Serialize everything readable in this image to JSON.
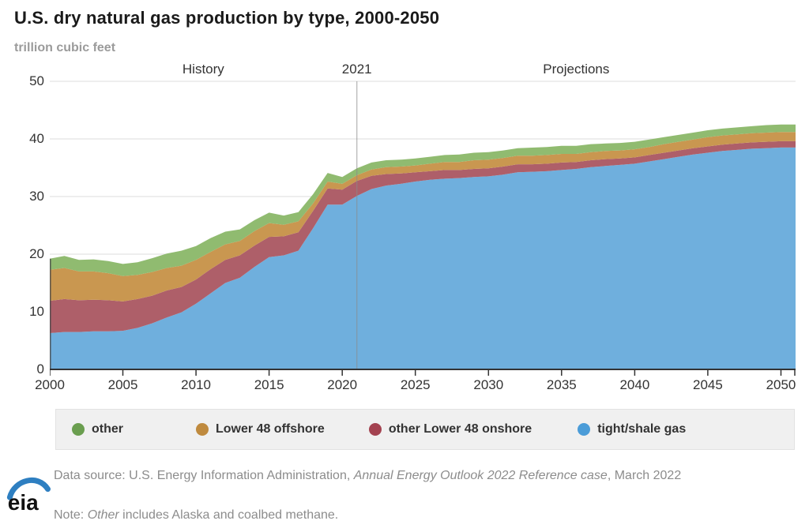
{
  "header": {
    "title": "U.S. dry natural gas production by type, 2000-2050",
    "subtitle": "trillion cubic feet"
  },
  "annotations": {
    "history": "History",
    "divider_year": "2021",
    "projections": "Projections"
  },
  "chart_data": {
    "type": "area",
    "stacked": true,
    "title": "U.S. dry natural gas production by type, 2000-2050",
    "ylabel": "trillion cubic feet",
    "xlim": [
      2000,
      2051
    ],
    "ylim": [
      0,
      50
    ],
    "yticks": [
      0,
      10,
      20,
      30,
      40,
      50
    ],
    "xticks": [
      2000,
      2005,
      2010,
      2015,
      2020,
      2025,
      2030,
      2035,
      2040,
      2045,
      2050
    ],
    "divider_x": 2021,
    "grid": "horizontal",
    "legend_position": "bottom",
    "x": [
      2000,
      2001,
      2002,
      2003,
      2004,
      2005,
      2006,
      2007,
      2008,
      2009,
      2010,
      2011,
      2012,
      2013,
      2014,
      2015,
      2016,
      2017,
      2018,
      2019,
      2020,
      2021,
      2022,
      2023,
      2024,
      2025,
      2026,
      2027,
      2028,
      2029,
      2030,
      2031,
      2032,
      2033,
      2034,
      2035,
      2036,
      2037,
      2038,
      2039,
      2040,
      2041,
      2042,
      2043,
      2044,
      2045,
      2046,
      2047,
      2048,
      2049,
      2050
    ],
    "series": [
      {
        "name": "tight/shale gas",
        "color": "#4b9cd8",
        "fill": "#6fafdd",
        "values": [
          6.3,
          6.5,
          6.5,
          6.6,
          6.6,
          6.7,
          7.2,
          8.0,
          9.0,
          9.9,
          11.4,
          13.2,
          15.0,
          15.9,
          17.8,
          19.5,
          19.8,
          20.6,
          24.5,
          28.6,
          28.6,
          30.1,
          31.3,
          31.9,
          32.2,
          32.6,
          32.9,
          33.1,
          33.2,
          33.4,
          33.5,
          33.8,
          34.2,
          34.3,
          34.4,
          34.6,
          34.8,
          35.1,
          35.3,
          35.5,
          35.7,
          36.1,
          36.5,
          36.9,
          37.3,
          37.6,
          37.9,
          38.1,
          38.3,
          38.4,
          38.5
        ]
      },
      {
        "name": "other Lower 48 onshore",
        "color": "#a34250",
        "fill": "#ae5f69",
        "values": [
          5.6,
          5.7,
          5.5,
          5.5,
          5.4,
          5.1,
          5.0,
          4.8,
          4.7,
          4.4,
          4.2,
          4.2,
          4.0,
          3.9,
          3.7,
          3.5,
          3.3,
          3.2,
          3.0,
          2.8,
          2.6,
          2.6,
          2.3,
          2.0,
          1.8,
          1.6,
          1.5,
          1.5,
          1.4,
          1.4,
          1.4,
          1.4,
          1.4,
          1.3,
          1.3,
          1.3,
          1.2,
          1.2,
          1.2,
          1.1,
          1.1,
          1.1,
          1.1,
          1.1,
          1.1,
          1.1,
          1.1,
          1.1,
          1.1,
          1.1,
          1.1
        ]
      },
      {
        "name": "Lower 48 offshore",
        "color": "#bf8a3e",
        "fill": "#c99750",
        "values": [
          5.4,
          5.4,
          5.0,
          4.9,
          4.7,
          4.4,
          4.2,
          4.1,
          3.9,
          3.7,
          3.4,
          3.0,
          2.7,
          2.5,
          2.5,
          2.4,
          2.0,
          1.9,
          1.3,
          1.2,
          1.0,
          1.0,
          1.1,
          1.2,
          1.2,
          1.2,
          1.3,
          1.4,
          1.4,
          1.5,
          1.5,
          1.5,
          1.5,
          1.5,
          1.5,
          1.5,
          1.4,
          1.4,
          1.4,
          1.4,
          1.4,
          1.4,
          1.5,
          1.5,
          1.5,
          1.6,
          1.6,
          1.6,
          1.6,
          1.6,
          1.6
        ]
      },
      {
        "name": "other",
        "color": "#6a9e4f",
        "fill": "#90bb70",
        "values": [
          1.9,
          2.1,
          2.0,
          2.1,
          2.1,
          2.1,
          2.2,
          2.4,
          2.5,
          2.6,
          2.4,
          2.4,
          2.2,
          2.0,
          1.9,
          1.8,
          1.6,
          1.6,
          1.6,
          1.5,
          1.2,
          1.2,
          1.2,
          1.2,
          1.2,
          1.2,
          1.2,
          1.2,
          1.3,
          1.3,
          1.3,
          1.3,
          1.3,
          1.4,
          1.4,
          1.4,
          1.4,
          1.4,
          1.3,
          1.3,
          1.3,
          1.3,
          1.2,
          1.2,
          1.2,
          1.2,
          1.2,
          1.2,
          1.2,
          1.3,
          1.3
        ]
      }
    ]
  },
  "legend": {
    "items": [
      {
        "label": "other",
        "color": "#6a9e4f"
      },
      {
        "label": "Lower 48 offshore",
        "color": "#bf8a3e"
      },
      {
        "label": "other Lower 48 onshore",
        "color": "#a34250"
      },
      {
        "label": "tight/shale gas",
        "color": "#4b9cd8"
      }
    ]
  },
  "footer": {
    "source_prefix": "Data source: U.S. Energy Information Administration, ",
    "source_italic": "Annual Energy Outlook 2022 Reference case",
    "source_suffix": ", March 2022",
    "note_prefix": "Note: ",
    "note_italic": "Other",
    "note_suffix": " includes Alaska and coalbed methane.",
    "logo_text": "eia"
  }
}
